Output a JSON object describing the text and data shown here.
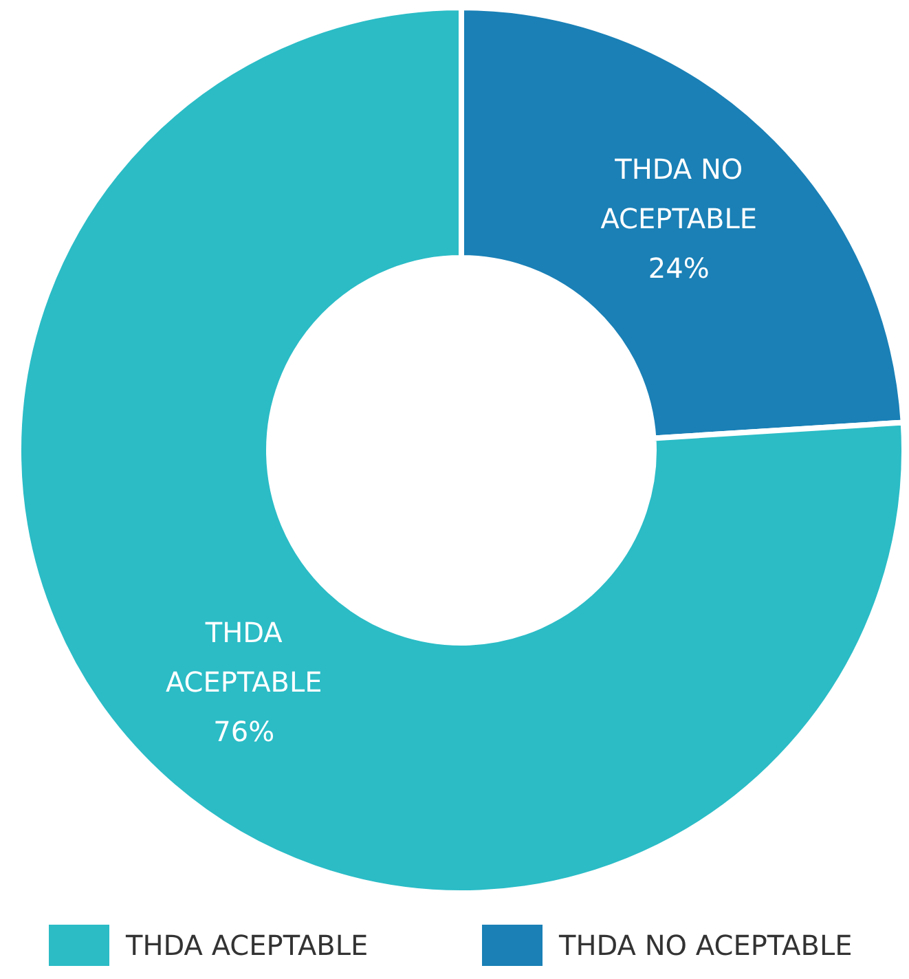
{
  "chart_data": {
    "type": "donut",
    "categories": [
      "THDA ACEPTABLE",
      "THDA NO ACEPTABLE"
    ],
    "values": [
      76,
      24
    ],
    "colors": [
      "#2bbcc6",
      "#1a80b6"
    ],
    "value_labels": [
      "76%",
      "24%"
    ],
    "legend": "bottom"
  }
}
